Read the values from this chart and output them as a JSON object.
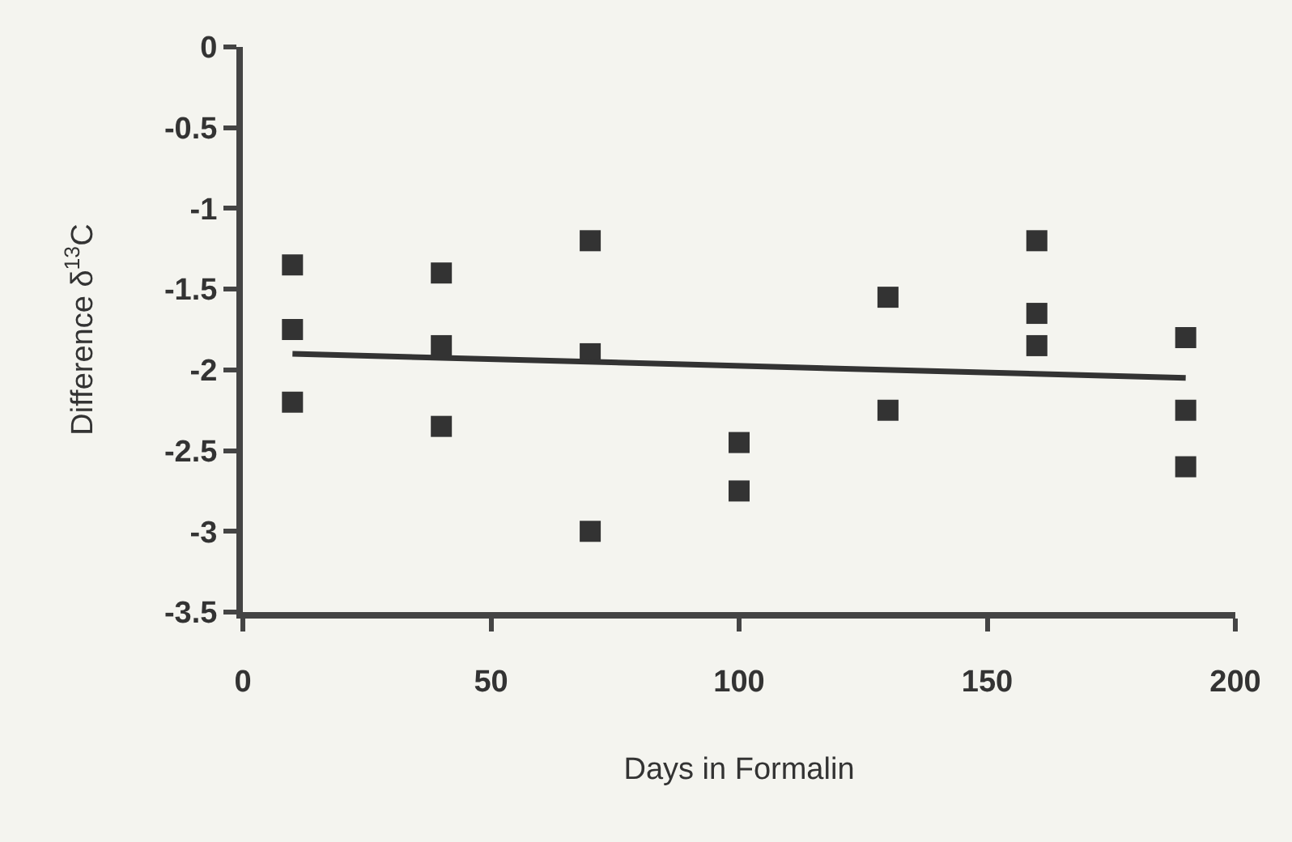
{
  "chart_data": {
    "type": "scatter",
    "xlabel": "Days in Formalin",
    "ylabel": "Difference δ$^{13}$C",
    "xlim": [
      0,
      200
    ],
    "xticks": [
      0,
      50,
      100,
      150,
      200
    ],
    "ylim": [
      -3.5,
      0
    ],
    "yticks": [
      0,
      -0.5,
      -1,
      -1.5,
      -2,
      -2.5,
      -3,
      -3.5
    ],
    "grid": false,
    "marker": "square",
    "series": [
      {
        "color": "#333333",
        "x": [
          10,
          10,
          10,
          40,
          40,
          40,
          70,
          70,
          70,
          100,
          100,
          130,
          130,
          160,
          160,
          160,
          190,
          190,
          190
        ],
        "values": [
          -1.35,
          -1.75,
          -2.2,
          -1.4,
          -1.85,
          -2.35,
          -1.2,
          -1.9,
          -3.0,
          -2.45,
          -2.75,
          -1.55,
          -2.25,
          -1.2,
          -1.65,
          -1.85,
          -1.8,
          -2.25,
          -2.6
        ]
      },
      {
        "type": "line",
        "color": "#333333",
        "line_style": "solid",
        "marker": "none",
        "x": [
          10,
          190
        ],
        "values": [
          -1.9,
          -2.05
        ]
      }
    ]
  }
}
